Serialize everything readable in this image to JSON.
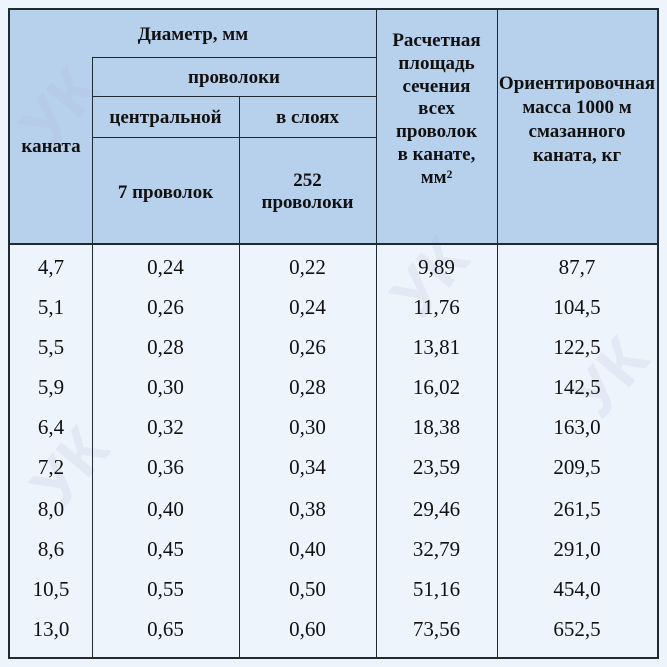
{
  "header": {
    "diameter": "Диаметр, мм",
    "wires": "проволоки",
    "central": "центральной",
    "layers": "в слоях",
    "rope": "каната",
    "seven_wires": "7 проволок",
    "wires_252_num": "252",
    "wires_252_word": "проволоки",
    "area_lines": [
      "Расчетная",
      "площадь",
      "сечения",
      "всех",
      "проволок",
      "в канате,"
    ],
    "area_unit": "мм²",
    "mass_lines": [
      "Ориентировочная",
      "масса 1000 м",
      "смазанного",
      "каната, кг"
    ]
  },
  "rows": [
    [
      "4,7",
      "0,24",
      "0,22",
      "9,89",
      "87,7"
    ],
    [
      "5,1",
      "0,26",
      "0,24",
      "11,76",
      "104,5"
    ],
    [
      "5,5",
      "0,28",
      "0,26",
      "13,81",
      "122,5"
    ],
    [
      "5,9",
      "0,30",
      "0,28",
      "16,02",
      "142,5"
    ],
    [
      "6,4",
      "0,32",
      "0,30",
      "18,38",
      "163,0"
    ],
    [
      "7,2",
      "0,36",
      "0,34",
      "23,59",
      "209,5"
    ],
    [
      "8,0",
      "0,40",
      "0,38",
      "29,46",
      "261,5"
    ],
    [
      "8,6",
      "0,45",
      "0,40",
      "32,79",
      "291,0"
    ],
    [
      "10,5",
      "0,55",
      "0,50",
      "51,16",
      "454,0"
    ],
    [
      "13,0",
      "0,65",
      "0,60",
      "73,56",
      "652,5"
    ]
  ],
  "watermark": "УРАЛ СТАЛЬ"
}
